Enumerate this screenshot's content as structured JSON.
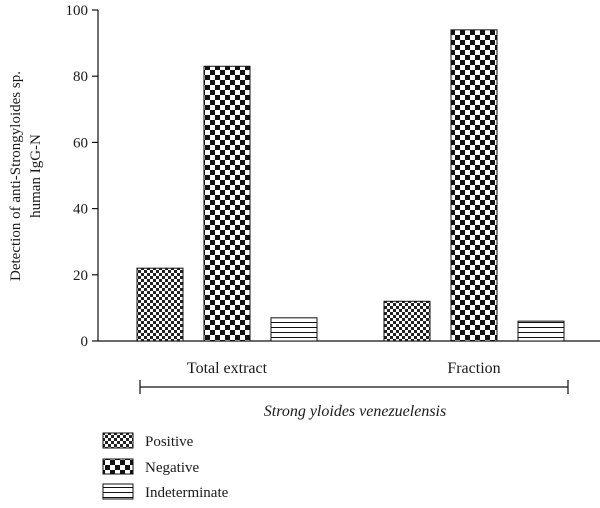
{
  "chart_data": {
    "type": "bar",
    "categories": [
      "Total extract",
      "Fraction"
    ],
    "series": [
      {
        "name": "Positive",
        "values": [
          22,
          12
        ],
        "pattern": "small-checker"
      },
      {
        "name": "Negative",
        "values": [
          83,
          94
        ],
        "pattern": "large-checker"
      },
      {
        "name": "Indeterminate",
        "values": [
          7,
          6
        ],
        "pattern": "horizontal-lines"
      }
    ],
    "ylabel_lines": [
      "Detection of anti-Strongyloides sp.",
      "human IgG-N"
    ],
    "xlabel": "",
    "group_label": "Strong yloides venezuelensis",
    "ylim": [
      0,
      100
    ],
    "yticks": [
      0,
      20,
      40,
      60,
      80,
      100
    ],
    "legend_position": "bottom-left",
    "grid": false
  }
}
